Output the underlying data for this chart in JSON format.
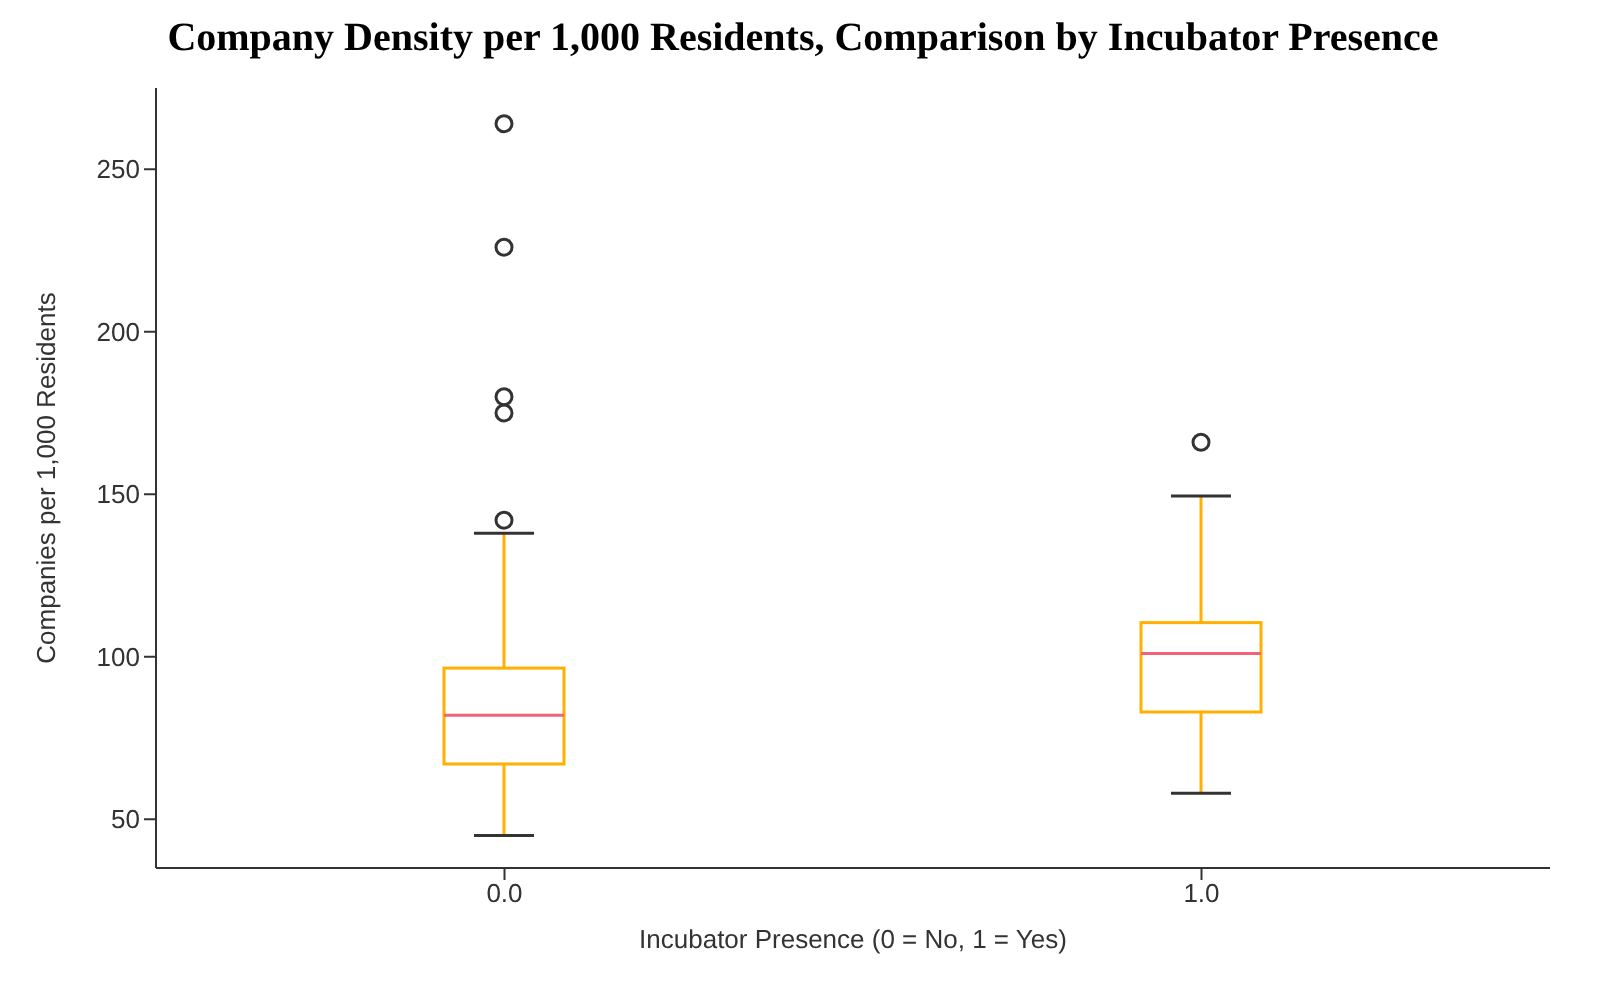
{
  "chart_data": {
    "type": "box",
    "title": "Company Density per 1,000 Residents, Comparison by Incubator Presence",
    "xlabel": "Incubator Presence (0 = No, 1 = Yes)",
    "ylabel": "Companies per 1,000 Residents",
    "categories": [
      "0.0",
      "1.0"
    ],
    "color": "#ffb000",
    "boxes": [
      {
        "low": 45,
        "q1": 67,
        "median": 82,
        "q3": 96.5,
        "high": 138,
        "outliers": [
          142,
          175,
          180,
          226,
          264
        ]
      },
      {
        "low": 58,
        "q1": 83,
        "median": 101,
        "q3": 110.5,
        "high": 149.5,
        "outliers": [
          166
        ]
      }
    ],
    "ylim": [
      35,
      275
    ],
    "yticks": [
      50,
      100,
      150,
      200,
      250
    ],
    "grid": false
  }
}
